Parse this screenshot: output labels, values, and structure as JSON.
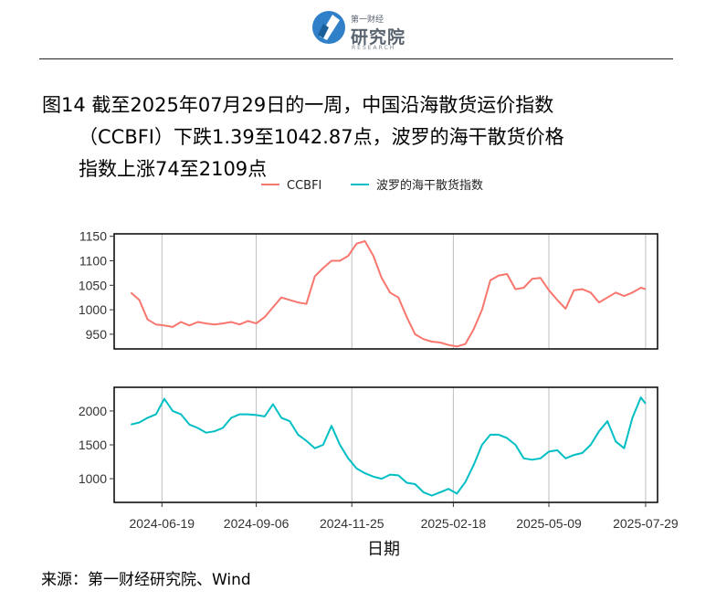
{
  "header": {
    "logo_top": "第一财经",
    "logo_main": "研究院",
    "logo_sub": "RESEARCH"
  },
  "title": {
    "line1": "图14  截至2025年07月29日的一周，中国沿海散货运价指数",
    "line2": "（CCBFI）下跌1.39至1042.87点，波罗的海干散货价格",
    "line3": "指数上涨74至2109点"
  },
  "source": "来源：第一财经研究院、Wind",
  "colors": {
    "ccbfi": "#F8766D",
    "bdi": "#00BFC4"
  },
  "chart_data": {
    "type": "line",
    "xlabel": "日期",
    "x_ticks": [
      "2024-06-19",
      "2024-09-06",
      "2024-11-25",
      "2025-02-18",
      "2025-05-09",
      "2025-07-29"
    ],
    "legend": {
      "position": "top",
      "entries": [
        "CCBFI",
        "波罗的海干散货指数"
      ]
    },
    "grid": {
      "vertical": true,
      "horizontal": false
    },
    "panels": [
      {
        "name": "CCBFI",
        "ylim": [
          920,
          1155
        ],
        "y_ticks": [
          950,
          1000,
          1050,
          1100,
          1150
        ],
        "series": [
          {
            "name": "CCBFI",
            "x": [
              "2024-05-24",
              "2024-05-31",
              "2024-06-07",
              "2024-06-14",
              "2024-06-21",
              "2024-06-28",
              "2024-07-05",
              "2024-07-12",
              "2024-07-19",
              "2024-07-26",
              "2024-08-02",
              "2024-08-09",
              "2024-08-16",
              "2024-08-23",
              "2024-08-30",
              "2024-09-06",
              "2024-09-13",
              "2024-09-20",
              "2024-09-27",
              "2024-10-04",
              "2024-10-11",
              "2024-10-18",
              "2024-10-25",
              "2024-11-01",
              "2024-11-08",
              "2024-11-15",
              "2024-11-22",
              "2024-11-29",
              "2024-12-06",
              "2024-12-13",
              "2024-12-20",
              "2024-12-27",
              "2025-01-03",
              "2025-01-10",
              "2025-01-17",
              "2025-01-24",
              "2025-01-31",
              "2025-02-07",
              "2025-02-14",
              "2025-02-21",
              "2025-02-28",
              "2025-03-07",
              "2025-03-14",
              "2025-03-21",
              "2025-03-28",
              "2025-04-04",
              "2025-04-11",
              "2025-04-18",
              "2025-04-25",
              "2025-05-02",
              "2025-05-09",
              "2025-05-16",
              "2025-05-23",
              "2025-05-30",
              "2025-06-06",
              "2025-06-13",
              "2025-06-20",
              "2025-06-27",
              "2025-07-04",
              "2025-07-11",
              "2025-07-18",
              "2025-07-25",
              "2025-07-29"
            ],
            "values": [
              1035,
              1020,
              980,
              970,
              968,
              965,
              975,
              968,
              975,
              972,
              970,
              972,
              975,
              970,
              977,
              972,
              985,
              1005,
              1025,
              1020,
              1015,
              1012,
              1068,
              1085,
              1100,
              1100,
              1110,
              1135,
              1140,
              1110,
              1065,
              1035,
              1025,
              985,
              950,
              940,
              935,
              933,
              928,
              925,
              930,
              960,
              1000,
              1060,
              1070,
              1073,
              1042,
              1045,
              1063,
              1065,
              1040,
              1020,
              1002,
              1040,
              1042,
              1035,
              1015,
              1025,
              1035,
              1028,
              1035,
              1045,
              1042
            ]
          }
        ]
      },
      {
        "name": "波罗的海干散货指数",
        "ylim": [
          650,
          2350
        ],
        "y_ticks": [
          1000,
          1500,
          2000
        ],
        "series": [
          {
            "name": "波罗的海干散货指数",
            "x": [
              "2024-05-24",
              "2024-05-31",
              "2024-06-07",
              "2024-06-14",
              "2024-06-21",
              "2024-06-28",
              "2024-07-05",
              "2024-07-12",
              "2024-07-19",
              "2024-07-26",
              "2024-08-02",
              "2024-08-09",
              "2024-08-16",
              "2024-08-23",
              "2024-08-30",
              "2024-09-06",
              "2024-09-13",
              "2024-09-20",
              "2024-09-27",
              "2024-10-04",
              "2024-10-11",
              "2024-10-18",
              "2024-10-25",
              "2024-11-01",
              "2024-11-08",
              "2024-11-15",
              "2024-11-22",
              "2024-11-29",
              "2024-12-06",
              "2024-12-13",
              "2024-12-20",
              "2024-12-27",
              "2025-01-03",
              "2025-01-10",
              "2025-01-17",
              "2025-01-24",
              "2025-01-31",
              "2025-02-07",
              "2025-02-14",
              "2025-02-21",
              "2025-02-28",
              "2025-03-07",
              "2025-03-14",
              "2025-03-21",
              "2025-03-28",
              "2025-04-04",
              "2025-04-11",
              "2025-04-18",
              "2025-04-25",
              "2025-05-02",
              "2025-05-09",
              "2025-05-16",
              "2025-05-23",
              "2025-05-30",
              "2025-06-06",
              "2025-06-13",
              "2025-06-20",
              "2025-06-27",
              "2025-07-04",
              "2025-07-11",
              "2025-07-18",
              "2025-07-25",
              "2025-07-29"
            ],
            "values": [
              1800,
              1830,
              1900,
              1950,
              2180,
              2000,
              1950,
              1800,
              1750,
              1680,
              1700,
              1750,
              1900,
              1950,
              1950,
              1940,
              1920,
              2100,
              1900,
              1850,
              1650,
              1560,
              1450,
              1500,
              1780,
              1500,
              1300,
              1150,
              1080,
              1030,
              1000,
              1060,
              1050,
              940,
              920,
              800,
              750,
              800,
              850,
              780,
              950,
              1200,
              1500,
              1650,
              1650,
              1600,
              1500,
              1300,
              1280,
              1300,
              1400,
              1420,
              1300,
              1350,
              1380,
              1500,
              1700,
              1850,
              1550,
              1450,
              1900,
              2200,
              2109
            ]
          }
        ]
      }
    ]
  }
}
